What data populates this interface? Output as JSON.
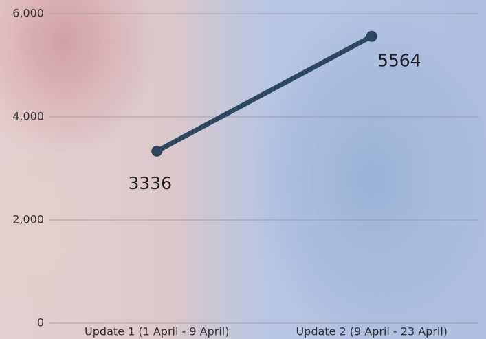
{
  "chart_data": {
    "type": "line",
    "categories": [
      "Update 1 (1 April - 9 April)",
      "Update 2 (9 April - 23 April)"
    ],
    "values": [
      3336,
      5564
    ],
    "color": "#2e4760",
    "ylim": [
      0,
      6000
    ],
    "yticks": [
      0,
      {
        "value": 2000,
        "label": "2,000"
      },
      {
        "value": 4000,
        "label": "4,000"
      },
      {
        "value": 6000,
        "label": "6,000"
      }
    ],
    "grid": true
  }
}
